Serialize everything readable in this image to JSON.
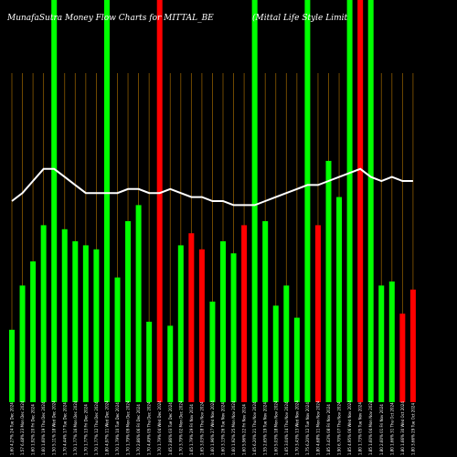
{
  "chart_data": {
    "type": "bar",
    "title_left": "MunafaSutra  Money Flow  Charts for MITTAL_BE",
    "title_right": "(Mittal Life   Style   Limit",
    "ylim": [
      0,
      100
    ],
    "grid": "vertical",
    "colors": {
      "background": "#000000",
      "grid": "#8b5a00",
      "up": "#00ff00",
      "down": "#ff0000",
      "line": "#ffffff"
    },
    "categories": [
      "1.60 4.27% 24 Tue Dec 2024",
      "1.57 6.48% 23 Mon Dec 2024",
      "1.60 1.92% 20 Fri Dec 2024",
      "1.60 1.60% 19 Thu Dec 2024",
      "1.50 5.11% 18 Wed Dec 2024",
      "1.70 4.44% 17 Tue Dec 2024",
      "1.70 1.77% 16 Mon Dec 2024",
      "1.70 1.77% 13 Fri Dec 2024",
      "1.70 1.77% 12 Thu Dec 2024",
      "1.80 4.97% 11 Wed Dec 2024",
      "1.70 1.79% 10 Tue Dec 2024",
      "1.70 1.79% 09 Mon Dec 2024",
      "1.70 2.86% 06 Fri Dec 2024",
      "1.70 4.49% 05 Thu Dec 2024",
      "1.70 1.79% 04 Wed Dec 2024",
      "1.65 2.86% 03 Tue Dec 2024",
      "1.70 3.79% 02 Mon Dec 2024",
      "1.65 1.79% 29 Fri Nov 2024",
      "1.65 3.03% 28 Thu Nov 2024",
      "1.60 1.96% 27 Wed Nov 2024",
      "1.60 3.13% 26 Tue Nov 2024",
      "1.60 1.92% 25 Mon Nov 2024",
      "1.60 5.96% 22 Fri Nov 2024",
      "1.65 6.20% 21 Thu Nov 2024",
      "1.55 2.65% 19 Tue Nov 2024",
      "1.60 5.03% 18 Mon Nov 2024",
      "1.65 3.04% 14 Thu Nov 2024",
      "1.70 3.43% 13 Wed Nov 2024",
      "1.75 6.20% 12 Tue Nov 2024",
      "1.80 4.68% 11 Mon Nov 2024",
      "1.85 3.43% 08 Fri Nov 2024",
      "1.90 6.70% 07 Thu Nov 2024",
      "1.85 4.95% 06 Wed Nov 2024",
      "1.80 1.73% 05 Tue Nov 2024",
      "1.85 1.60% 04 Mon Nov 2024",
      "1.80 2.60% 01 Fri Nov 2024",
      "1.80 1.66% 31 Thu Oct 2024",
      "1.80 1.66% 30 Wed Oct 2024",
      "1.80 3.66% 29 Tue Oct 2024"
    ],
    "values": [
      18,
      29,
      35,
      44,
      100,
      43,
      40,
      39,
      38,
      100,
      31,
      45,
      49,
      20,
      100,
      19,
      39,
      42,
      38,
      25,
      40,
      37,
      44,
      100,
      45,
      24,
      29,
      21,
      100,
      44,
      60,
      51,
      100,
      100,
      100,
      29,
      30,
      22,
      28
    ],
    "colors_by_bar": [
      "up",
      "up",
      "up",
      "up",
      "up",
      "up",
      "up",
      "up",
      "up",
      "up",
      "up",
      "up",
      "up",
      "up",
      "down",
      "up",
      "up",
      "down",
      "down",
      "up",
      "up",
      "up",
      "down",
      "up",
      "up",
      "up",
      "up",
      "up",
      "up",
      "down",
      "up",
      "up",
      "up",
      "down",
      "up",
      "up",
      "up",
      "down",
      "down"
    ],
    "line_values": [
      50,
      52,
      55,
      58,
      58,
      56,
      54,
      52,
      52,
      52,
      52,
      53,
      53,
      52,
      52,
      53,
      52,
      51,
      51,
      50,
      50,
      49,
      49,
      49,
      50,
      51,
      52,
      53,
      54,
      54,
      55,
      56,
      57,
      58,
      56,
      55,
      56,
      55,
      55
    ]
  }
}
